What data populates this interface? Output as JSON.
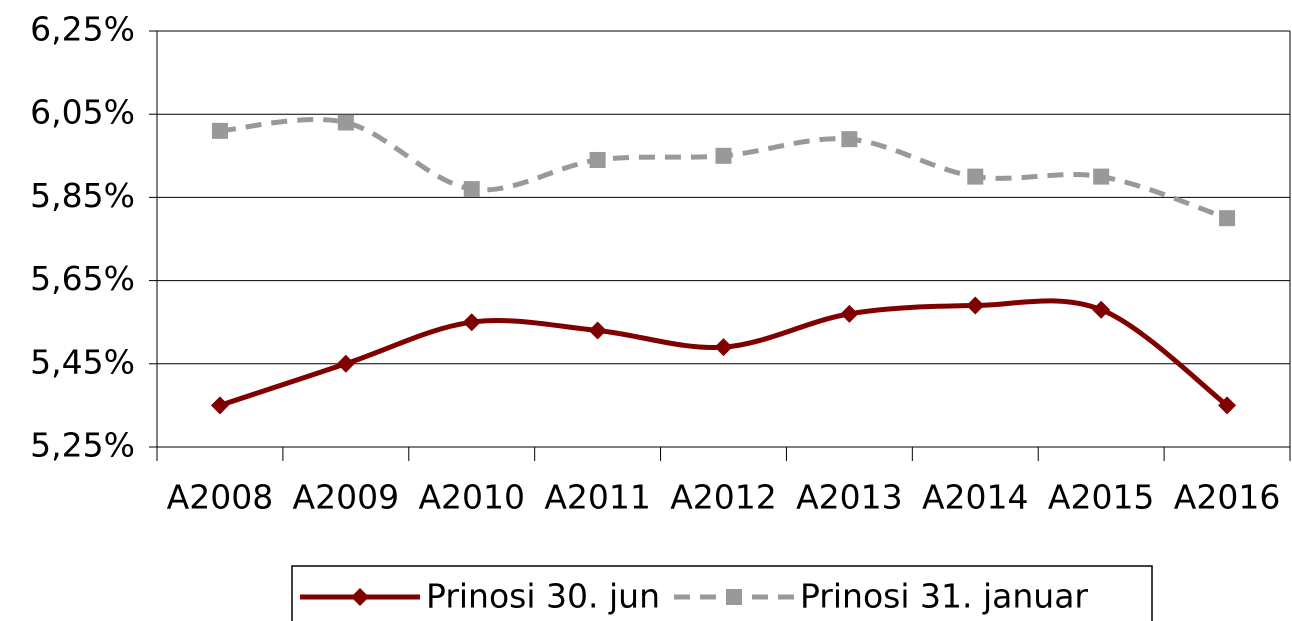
{
  "chart_data": {
    "type": "line",
    "categories": [
      "A2008",
      "A2009",
      "A2010",
      "A2011",
      "A2012",
      "A2013",
      "A2014",
      "A2015",
      "A2016"
    ],
    "series": [
      {
        "name": "Prinosi 30. jun",
        "color": "#800000",
        "values": [
          5.35,
          5.45,
          5.55,
          5.53,
          5.49,
          5.57,
          5.59,
          5.58,
          5.35
        ]
      },
      {
        "name": "Prinosi 31. januar",
        "color": "#999999",
        "values": [
          6.01,
          6.03,
          5.87,
          5.94,
          5.95,
          5.99,
          5.9,
          5.9,
          5.8
        ]
      }
    ],
    "ylim": [
      5.25,
      6.25
    ],
    "yticks": [
      {
        "value": 5.25,
        "label": "5,25%"
      },
      {
        "value": 5.45,
        "label": "5,45%"
      },
      {
        "value": 5.65,
        "label": "5,65%"
      },
      {
        "value": 5.85,
        "label": "5,85%"
      },
      {
        "value": 6.05,
        "label": "6,05%"
      },
      {
        "value": 6.25,
        "label": "6,25%"
      }
    ],
    "grid": true,
    "smooth": true,
    "legend": "bottom"
  }
}
